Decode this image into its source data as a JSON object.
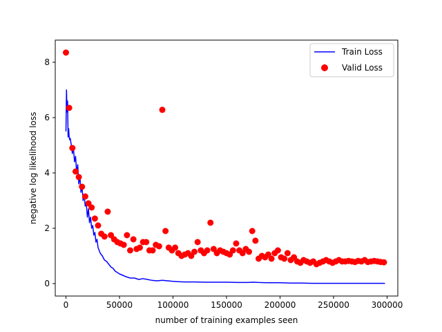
{
  "chart_data": {
    "type": "line",
    "xlabel": "number of training examples seen",
    "ylabel": "negative log likelihood loss",
    "xlim": [
      -10000,
      310000
    ],
    "ylim": [
      -0.45,
      8.8
    ],
    "xticks": [
      0,
      50000,
      100000,
      150000,
      200000,
      250000,
      300000
    ],
    "xtick_labels": [
      "0",
      "50000",
      "100000",
      "150000",
      "200000",
      "250000",
      "300000"
    ],
    "yticks": [
      0,
      2,
      4,
      6,
      8
    ],
    "ytick_labels": [
      "0",
      "2",
      "4",
      "6",
      "8"
    ],
    "legend_position": "top-right",
    "grid": false,
    "series": [
      {
        "name": "Train Loss",
        "kind": "line",
        "color": "#0000ff",
        "x": [
          0,
          500,
          1000,
          1500,
          2000,
          2500,
          3000,
          3500,
          4000,
          5000,
          6000,
          7000,
          8000,
          9000,
          10000,
          11000,
          12000,
          13000,
          14000,
          15000,
          16000,
          17000,
          18000,
          19000,
          20000,
          21000,
          22000,
          23000,
          24000,
          25000,
          26000,
          27000,
          28000,
          29000,
          30000,
          32000,
          34000,
          36000,
          38000,
          40000,
          42000,
          44000,
          46000,
          48000,
          50000,
          53000,
          56000,
          60000,
          64000,
          68000,
          72000,
          76000,
          80000,
          85000,
          90000,
          95000,
          100000,
          105000,
          110000,
          120000,
          130000,
          140000,
          150000,
          160000,
          170000,
          175000,
          180000,
          190000,
          200000,
          210000,
          220000,
          230000,
          250000,
          270000,
          298000
        ],
        "values": [
          5.5,
          7.0,
          6.2,
          6.6,
          5.3,
          5.6,
          5.3,
          5.2,
          5.25,
          5.0,
          4.7,
          4.9,
          4.4,
          4.6,
          4.0,
          4.3,
          3.6,
          3.9,
          3.3,
          3.5,
          3.0,
          3.2,
          2.8,
          2.9,
          2.4,
          2.7,
          2.2,
          2.4,
          2.0,
          2.1,
          1.75,
          1.85,
          1.5,
          1.6,
          1.3,
          1.1,
          1.0,
          0.85,
          0.8,
          0.7,
          0.6,
          0.55,
          0.45,
          0.4,
          0.35,
          0.3,
          0.25,
          0.2,
          0.2,
          0.15,
          0.18,
          0.15,
          0.12,
          0.1,
          0.12,
          0.1,
          0.08,
          0.07,
          0.06,
          0.06,
          0.05,
          0.05,
          0.05,
          0.04,
          0.04,
          0.05,
          0.04,
          0.03,
          0.03,
          0.02,
          0.02,
          0.01,
          0.01,
          0.01,
          0.01
        ]
      },
      {
        "name": "Valid Loss",
        "kind": "scatter",
        "color": "#ff0000",
        "x": [
          0,
          3000,
          6000,
          9000,
          12000,
          15000,
          18000,
          21000,
          24000,
          27000,
          30000,
          33000,
          36000,
          39000,
          42000,
          45000,
          48000,
          51000,
          54000,
          57000,
          60000,
          63000,
          66000,
          69000,
          72000,
          75000,
          78000,
          81000,
          84000,
          87000,
          90000,
          93000,
          96000,
          99000,
          102000,
          105000,
          108000,
          111000,
          114000,
          117000,
          120000,
          123000,
          126000,
          129000,
          132000,
          135000,
          138000,
          141000,
          144000,
          147000,
          150000,
          153000,
          156000,
          159000,
          162000,
          165000,
          168000,
          171000,
          174000,
          177000,
          180000,
          183000,
          186000,
          189000,
          192000,
          195000,
          198000,
          201000,
          204000,
          207000,
          210000,
          213000,
          216000,
          219000,
          222000,
          225000,
          228000,
          231000,
          234000,
          237000,
          240000,
          243000,
          246000,
          249000,
          252000,
          255000,
          258000,
          261000,
          264000,
          267000,
          270000,
          273000,
          276000,
          279000,
          282000,
          285000,
          288000,
          291000,
          294000,
          297000
        ],
        "values": [
          8.35,
          6.35,
          4.9,
          4.05,
          3.85,
          3.5,
          3.15,
          2.9,
          2.75,
          2.35,
          2.1,
          1.8,
          1.7,
          2.6,
          1.75,
          1.6,
          1.5,
          1.45,
          1.4,
          1.75,
          1.2,
          1.6,
          1.25,
          1.3,
          1.5,
          1.5,
          1.2,
          1.2,
          1.4,
          1.35,
          6.28,
          1.9,
          1.3,
          1.2,
          1.3,
          1.1,
          1.0,
          1.05,
          1.1,
          1.0,
          1.15,
          1.5,
          1.2,
          1.1,
          1.2,
          2.2,
          1.25,
          1.1,
          1.2,
          1.15,
          1.1,
          1.05,
          1.2,
          1.45,
          1.2,
          1.1,
          1.25,
          1.15,
          1.9,
          1.55,
          0.9,
          1.0,
          0.95,
          1.05,
          0.9,
          1.1,
          1.2,
          0.95,
          0.9,
          1.1,
          0.85,
          0.95,
          0.8,
          0.75,
          0.85,
          0.8,
          0.75,
          0.8,
          0.7,
          0.75,
          0.8,
          0.85,
          0.8,
          0.75,
          0.8,
          0.85,
          0.8,
          0.8,
          0.82,
          0.8,
          0.78,
          0.82,
          0.8,
          0.85,
          0.78,
          0.8,
          0.82,
          0.8,
          0.78,
          0.77
        ]
      }
    ]
  }
}
